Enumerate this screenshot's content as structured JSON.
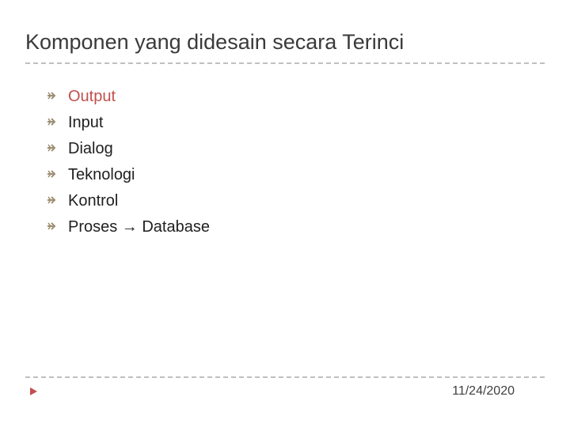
{
  "title": "Komponen yang didesain secara Terinci",
  "bullet_color": "#9e8f74",
  "highlight_color": "#c0504d",
  "text_color": "#202020",
  "title_color": "#3a3a3a",
  "divider_color": "#bfbfbf",
  "footer_marker_color": "#c0504d",
  "items": [
    {
      "text": "Output",
      "highlight": true
    },
    {
      "text": "Input",
      "highlight": false
    },
    {
      "text": "Dialog",
      "highlight": false
    },
    {
      "text": "Teknologi",
      "highlight": false
    },
    {
      "text": "Kontrol",
      "highlight": false
    },
    {
      "text": "Proses → Database",
      "highlight": false
    }
  ],
  "date": "11/24/2020"
}
